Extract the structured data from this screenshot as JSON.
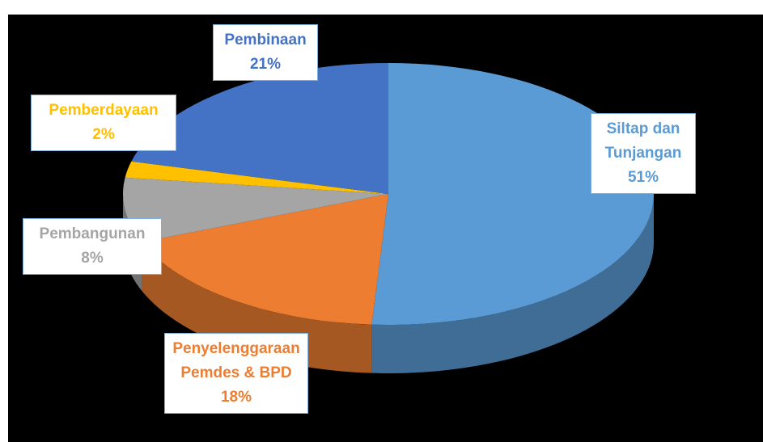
{
  "chart_data": {
    "type": "pie",
    "three_d": true,
    "categories": [
      "Siltap dan Tunjangan",
      "Penyelenggaraan Pemdes & BPD",
      "Pembangunan",
      "Pemberdayaan",
      "Pembinaan"
    ],
    "values": [
      51,
      18,
      8,
      2,
      21
    ],
    "value_labels": [
      "51%",
      "18%",
      "8%",
      "2%",
      "21%"
    ],
    "colors": [
      "#5b9bd5",
      "#ed7d31",
      "#a5a5a5",
      "#ffc000",
      "#4472c4"
    ]
  }
}
